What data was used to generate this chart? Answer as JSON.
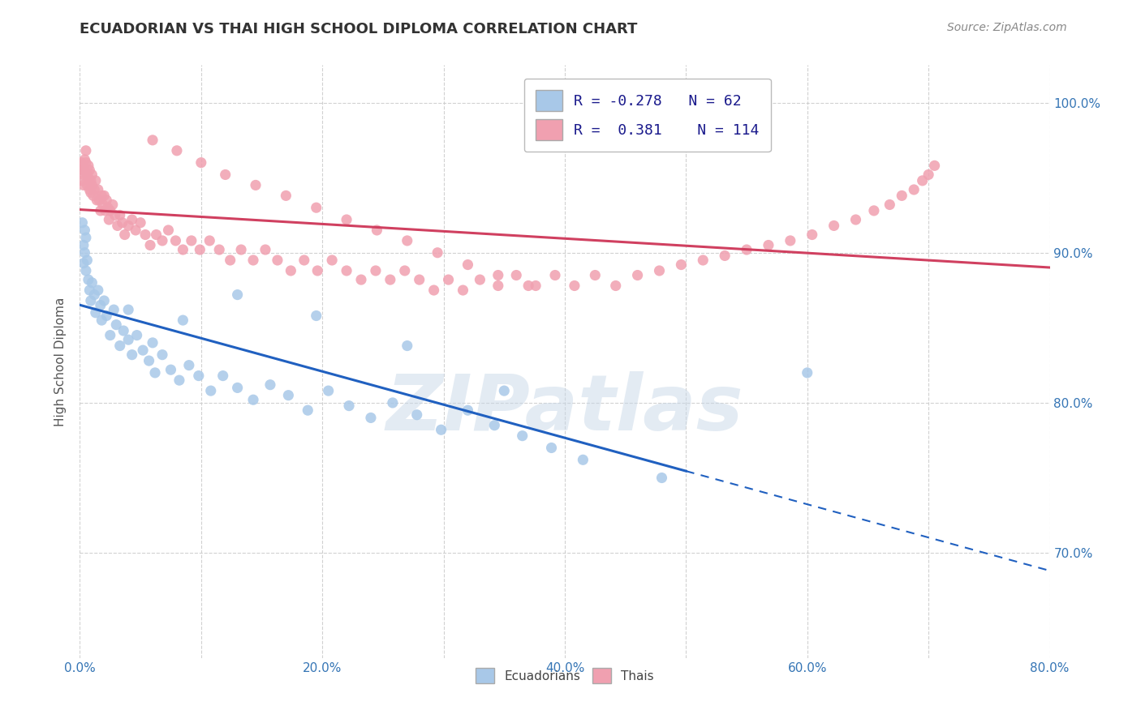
{
  "title": "ECUADORIAN VS THAI HIGH SCHOOL DIPLOMA CORRELATION CHART",
  "source_text": "Source: ZipAtlas.com",
  "ylabel": "High School Diploma",
  "watermark": "ZIPatlas",
  "xlim": [
    0.0,
    0.8
  ],
  "ylim": [
    0.63,
    1.025
  ],
  "xtick_labels": [
    "0.0%",
    "",
    "20.0%",
    "",
    "40.0%",
    "",
    "60.0%",
    "",
    "80.0%"
  ],
  "xtick_values": [
    0.0,
    0.1,
    0.2,
    0.3,
    0.4,
    0.5,
    0.6,
    0.7,
    0.8
  ],
  "ytick_labels": [
    "70.0%",
    "80.0%",
    "90.0%",
    "100.0%"
  ],
  "ytick_values": [
    0.7,
    0.8,
    0.9,
    1.0
  ],
  "legend_R_blue": "-0.278",
  "legend_N_blue": "62",
  "legend_R_pink": "0.381",
  "legend_N_pink": "114",
  "blue_color": "#A8C8E8",
  "pink_color": "#F0A0B0",
  "blue_line_color": "#2060C0",
  "pink_line_color": "#D04060",
  "grid_color": "#CCCCCC",
  "background_color": "#FFFFFF",
  "ecu_x": [
    0.002,
    0.003,
    0.003,
    0.004,
    0.004,
    0.005,
    0.005,
    0.006,
    0.007,
    0.008,
    0.009,
    0.01,
    0.012,
    0.013,
    0.015,
    0.017,
    0.018,
    0.02,
    0.022,
    0.025,
    0.028,
    0.03,
    0.033,
    0.036,
    0.04,
    0.043,
    0.047,
    0.052,
    0.057,
    0.062,
    0.068,
    0.075,
    0.082,
    0.09,
    0.098,
    0.108,
    0.118,
    0.13,
    0.143,
    0.157,
    0.172,
    0.188,
    0.205,
    0.222,
    0.24,
    0.258,
    0.278,
    0.298,
    0.32,
    0.342,
    0.365,
    0.389,
    0.415,
    0.35,
    0.27,
    0.195,
    0.13,
    0.085,
    0.06,
    0.04,
    0.48,
    0.6
  ],
  "ecu_y": [
    0.92,
    0.905,
    0.893,
    0.915,
    0.9,
    0.888,
    0.91,
    0.895,
    0.882,
    0.875,
    0.868,
    0.88,
    0.872,
    0.86,
    0.875,
    0.865,
    0.855,
    0.868,
    0.858,
    0.845,
    0.862,
    0.852,
    0.838,
    0.848,
    0.842,
    0.832,
    0.845,
    0.835,
    0.828,
    0.82,
    0.832,
    0.822,
    0.815,
    0.825,
    0.818,
    0.808,
    0.818,
    0.81,
    0.802,
    0.812,
    0.805,
    0.795,
    0.808,
    0.798,
    0.79,
    0.8,
    0.792,
    0.782,
    0.795,
    0.785,
    0.778,
    0.77,
    0.762,
    0.808,
    0.838,
    0.858,
    0.872,
    0.855,
    0.84,
    0.862,
    0.75,
    0.82
  ],
  "thai_x": [
    0.001,
    0.002,
    0.002,
    0.003,
    0.003,
    0.003,
    0.004,
    0.004,
    0.005,
    0.005,
    0.006,
    0.006,
    0.007,
    0.007,
    0.008,
    0.008,
    0.009,
    0.009,
    0.01,
    0.01,
    0.011,
    0.012,
    0.013,
    0.014,
    0.015,
    0.016,
    0.017,
    0.018,
    0.019,
    0.02,
    0.021,
    0.022,
    0.023,
    0.024,
    0.025,
    0.027,
    0.029,
    0.031,
    0.033,
    0.035,
    0.037,
    0.04,
    0.043,
    0.046,
    0.05,
    0.054,
    0.058,
    0.063,
    0.068,
    0.073,
    0.079,
    0.085,
    0.092,
    0.099,
    0.107,
    0.115,
    0.124,
    0.133,
    0.143,
    0.153,
    0.163,
    0.174,
    0.185,
    0.196,
    0.208,
    0.22,
    0.232,
    0.244,
    0.256,
    0.268,
    0.28,
    0.292,
    0.304,
    0.316,
    0.33,
    0.345,
    0.36,
    0.376,
    0.392,
    0.408,
    0.425,
    0.442,
    0.46,
    0.478,
    0.496,
    0.514,
    0.532,
    0.55,
    0.568,
    0.586,
    0.604,
    0.622,
    0.64,
    0.655,
    0.668,
    0.678,
    0.688,
    0.695,
    0.7,
    0.705,
    0.06,
    0.08,
    0.1,
    0.12,
    0.145,
    0.17,
    0.195,
    0.22,
    0.245,
    0.27,
    0.295,
    0.32,
    0.345,
    0.37
  ],
  "thai_y": [
    0.96,
    0.955,
    0.948,
    0.958,
    0.952,
    0.945,
    0.962,
    0.955,
    0.968,
    0.96,
    0.952,
    0.945,
    0.958,
    0.95,
    0.942,
    0.955,
    0.948,
    0.94,
    0.952,
    0.945,
    0.938,
    0.942,
    0.948,
    0.935,
    0.942,
    0.935,
    0.928,
    0.938,
    0.932,
    0.938,
    0.928,
    0.935,
    0.93,
    0.922,
    0.928,
    0.932,
    0.925,
    0.918,
    0.925,
    0.92,
    0.912,
    0.918,
    0.922,
    0.915,
    0.92,
    0.912,
    0.905,
    0.912,
    0.908,
    0.915,
    0.908,
    0.902,
    0.908,
    0.902,
    0.908,
    0.902,
    0.895,
    0.902,
    0.895,
    0.902,
    0.895,
    0.888,
    0.895,
    0.888,
    0.895,
    0.888,
    0.882,
    0.888,
    0.882,
    0.888,
    0.882,
    0.875,
    0.882,
    0.875,
    0.882,
    0.878,
    0.885,
    0.878,
    0.885,
    0.878,
    0.885,
    0.878,
    0.885,
    0.888,
    0.892,
    0.895,
    0.898,
    0.902,
    0.905,
    0.908,
    0.912,
    0.918,
    0.922,
    0.928,
    0.932,
    0.938,
    0.942,
    0.948,
    0.952,
    0.958,
    0.975,
    0.968,
    0.96,
    0.952,
    0.945,
    0.938,
    0.93,
    0.922,
    0.915,
    0.908,
    0.9,
    0.892,
    0.885,
    0.878
  ]
}
